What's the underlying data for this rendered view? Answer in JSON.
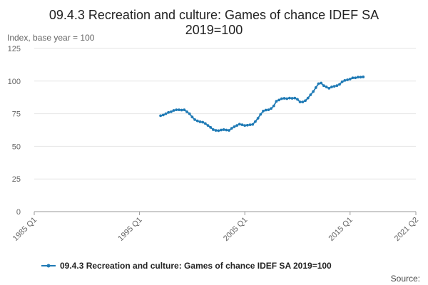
{
  "chart_data": {
    "type": "line",
    "title_line1": "09.4.3 Recreation and culture: Games of chance IDEF SA",
    "title_line2": "2019=100",
    "ylabel": "Index, base year = 100",
    "yticks": [
      0,
      25,
      50,
      75,
      100,
      125
    ],
    "ylim": [
      0,
      125
    ],
    "xticks": [
      "1985 Q1",
      "1995 Q1",
      "2005 Q1",
      "2015 Q1",
      "2021 Q2"
    ],
    "x_start": "1985 Q1",
    "x_end": "2021 Q2",
    "grid": true,
    "legend_position": "bottom",
    "series": [
      {
        "name": "09.4.3 Recreation and culture: Games of chance IDEF SA 2019=100",
        "color": "#1f7ab5",
        "x_start": "1997 Q1",
        "values": [
          73.5,
          74.0,
          75.0,
          76.0,
          76.5,
          77.5,
          78.0,
          78.0,
          77.8,
          78.0,
          76.5,
          75.0,
          72.5,
          70.5,
          69.5,
          68.8,
          68.5,
          67.5,
          66.0,
          64.5,
          62.8,
          62.2,
          62.0,
          62.5,
          62.8,
          62.5,
          62.2,
          63.8,
          65.0,
          66.0,
          67.0,
          66.5,
          66.0,
          66.2,
          66.5,
          66.8,
          69.0,
          71.5,
          74.5,
          77.0,
          77.8,
          78.0,
          79.0,
          81.0,
          84.5,
          85.5,
          86.5,
          86.8,
          86.5,
          87.0,
          86.8,
          87.0,
          86.0,
          84.0,
          84.0,
          85.0,
          87.0,
          89.5,
          92.0,
          95.0,
          98.0,
          98.5,
          96.5,
          95.5,
          94.5,
          95.5,
          96.0,
          96.5,
          97.5,
          99.5,
          100.5,
          101.0,
          101.5,
          102.5,
          102.5,
          103.0,
          103.0,
          103.2
        ]
      }
    ]
  },
  "source_label": "Source:"
}
